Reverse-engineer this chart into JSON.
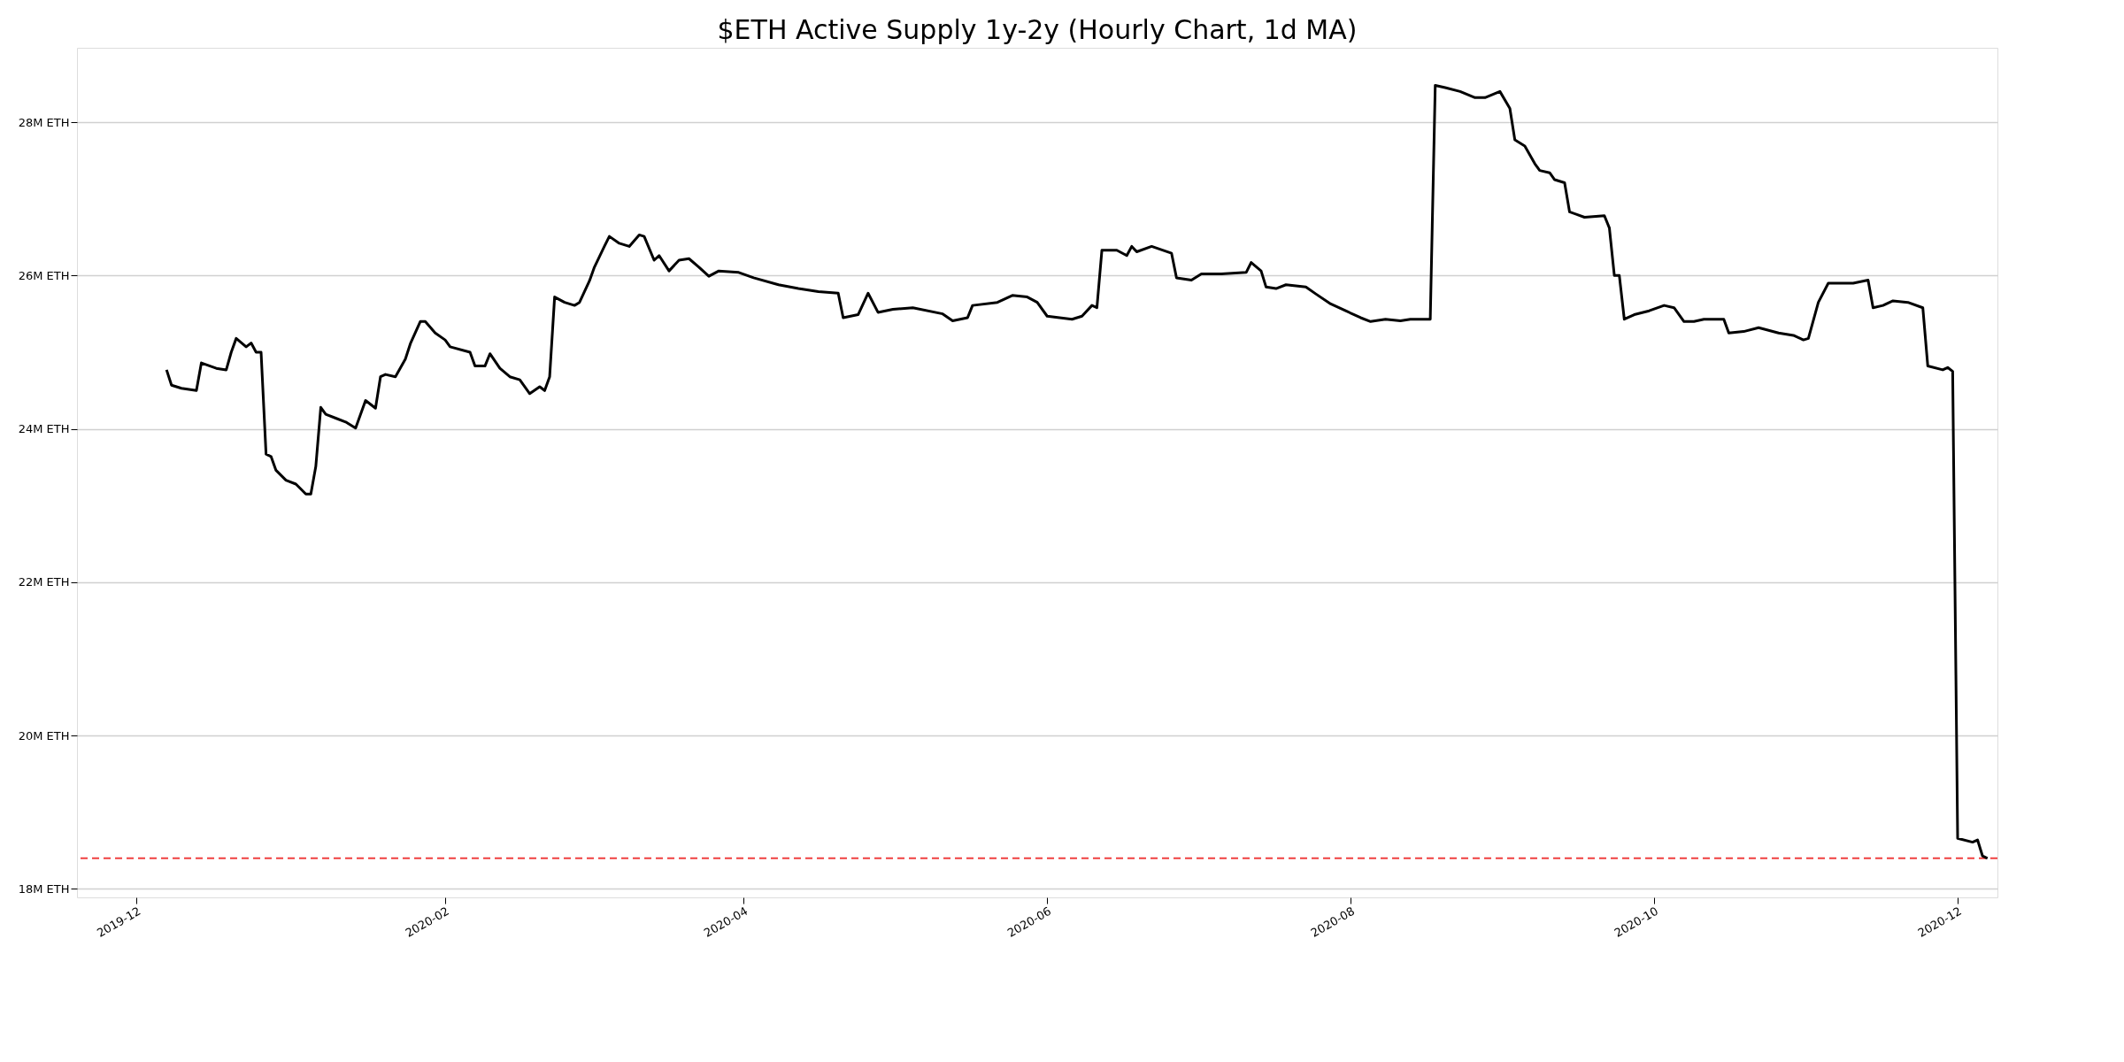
{
  "chart_data": {
    "type": "line",
    "title": "$ETH Active Supply 1y-2y (Hourly Chart, 1d MA)",
    "x": [
      "2019-12-07",
      "2019-12-08",
      "2019-12-10",
      "2019-12-13",
      "2019-12-14",
      "2019-12-17",
      "2019-12-19",
      "2019-12-20",
      "2019-12-21",
      "2019-12-23",
      "2019-12-24",
      "2019-12-25",
      "2019-12-26",
      "2019-12-27",
      "2019-12-28",
      "2019-12-29",
      "2019-12-31",
      "2020-01-02",
      "2020-01-04",
      "2020-01-05",
      "2020-01-06",
      "2020-01-07",
      "2020-01-08",
      "2020-01-10",
      "2020-01-12",
      "2020-01-14",
      "2020-01-16",
      "2020-01-18",
      "2020-01-19",
      "2020-01-20",
      "2020-01-22",
      "2020-01-24",
      "2020-01-25",
      "2020-01-27",
      "2020-01-28",
      "2020-01-30",
      "2020-02-01",
      "2020-02-02",
      "2020-02-06",
      "2020-02-07",
      "2020-02-09",
      "2020-02-10",
      "2020-02-12",
      "2020-02-14",
      "2020-02-16",
      "2020-02-18",
      "2020-02-20",
      "2020-02-21",
      "2020-02-22",
      "2020-02-23",
      "2020-02-25",
      "2020-02-27",
      "2020-02-28",
      "2020-03-01",
      "2020-03-02",
      "2020-03-04",
      "2020-03-05",
      "2020-03-07",
      "2020-03-09",
      "2020-03-11",
      "2020-03-12",
      "2020-03-14",
      "2020-03-15",
      "2020-03-17",
      "2020-03-19",
      "2020-03-21",
      "2020-03-23",
      "2020-03-25",
      "2020-03-27",
      "2020-03-31",
      "2020-04-03",
      "2020-04-08",
      "2020-04-12",
      "2020-04-16",
      "2020-04-20",
      "2020-04-21",
      "2020-04-24",
      "2020-04-26",
      "2020-04-28",
      "2020-05-01",
      "2020-05-05",
      "2020-05-11",
      "2020-05-13",
      "2020-05-16",
      "2020-05-17",
      "2020-05-22",
      "2020-05-25",
      "2020-05-28",
      "2020-05-30",
      "2020-06-01",
      "2020-06-06",
      "2020-06-08",
      "2020-06-10",
      "2020-06-11",
      "2020-06-12",
      "2020-06-15",
      "2020-06-17",
      "2020-06-18",
      "2020-06-19",
      "2020-06-22",
      "2020-06-26",
      "2020-06-27",
      "2020-06-30",
      "2020-07-02",
      "2020-07-06",
      "2020-07-11",
      "2020-07-12",
      "2020-07-14",
      "2020-07-15",
      "2020-07-17",
      "2020-07-19",
      "2020-07-23",
      "2020-07-25",
      "2020-07-28",
      "2020-07-31",
      "2020-08-03",
      "2020-08-05",
      "2020-08-08",
      "2020-08-11",
      "2020-08-13",
      "2020-08-16",
      "2020-08-17",
      "2020-08-18",
      "2020-08-20",
      "2020-08-23",
      "2020-08-26",
      "2020-08-28",
      "2020-08-31",
      "2020-09-02",
      "2020-09-03",
      "2020-09-05",
      "2020-09-07",
      "2020-09-08",
      "2020-09-10",
      "2020-09-11",
      "2020-09-13",
      "2020-09-14",
      "2020-09-17",
      "2020-09-21",
      "2020-09-22",
      "2020-09-23",
      "2020-09-24",
      "2020-09-25",
      "2020-09-27",
      "2020-09-30",
      "2020-10-03",
      "2020-10-05",
      "2020-10-07",
      "2020-10-09",
      "2020-10-11",
      "2020-10-15",
      "2020-10-16",
      "2020-10-19",
      "2020-10-22",
      "2020-10-26",
      "2020-10-29",
      "2020-10-31",
      "2020-11-01",
      "2020-11-03",
      "2020-11-05",
      "2020-11-10",
      "2020-11-13",
      "2020-11-14",
      "2020-11-16",
      "2020-11-18",
      "2020-11-21",
      "2020-11-24",
      "2020-11-25",
      "2020-11-28",
      "2020-11-29",
      "2020-11-30",
      "2020-12-01",
      "2020-12-04",
      "2020-12-05",
      "2020-12-06",
      "2020-12-07"
    ],
    "series": [
      {
        "color": "#000000",
        "values": [
          24.77,
          24.57,
          24.53,
          24.5,
          24.86,
          24.79,
          24.77,
          25.0,
          25.18,
          25.07,
          25.12,
          25.0,
          25.0,
          23.67,
          23.64,
          23.46,
          23.33,
          23.28,
          23.15,
          23.15,
          23.51,
          24.28,
          24.19,
          24.14,
          24.09,
          24.01,
          24.37,
          24.27,
          24.68,
          24.71,
          24.68,
          24.91,
          25.11,
          25.4,
          25.4,
          25.25,
          25.16,
          25.07,
          25.0,
          24.82,
          24.82,
          24.98,
          24.79,
          24.68,
          24.64,
          24.46,
          24.55,
          24.5,
          24.68,
          25.72,
          25.65,
          25.61,
          25.65,
          25.93,
          26.11,
          26.38,
          26.51,
          26.42,
          26.38,
          26.53,
          26.51,
          26.2,
          26.26,
          26.06,
          26.2,
          26.22,
          26.11,
          25.99,
          26.06,
          26.04,
          25.97,
          25.88,
          25.83,
          25.79,
          25.77,
          25.45,
          25.49,
          25.77,
          25.52,
          25.56,
          25.58,
          25.5,
          25.41,
          25.45,
          25.61,
          25.65,
          25.74,
          25.72,
          25.65,
          25.47,
          25.43,
          25.47,
          25.61,
          25.58,
          26.33,
          26.33,
          26.26,
          26.38,
          26.31,
          26.38,
          26.29,
          25.97,
          25.94,
          26.02,
          26.02,
          26.04,
          26.17,
          26.06,
          25.85,
          25.83,
          25.88,
          25.85,
          25.76,
          25.63,
          25.54,
          25.45,
          25.4,
          25.43,
          25.41,
          25.43,
          25.43,
          25.43,
          28.48,
          28.45,
          28.4,
          28.32,
          28.32,
          28.4,
          28.18,
          27.77,
          27.69,
          27.46,
          27.37,
          27.34,
          27.25,
          27.21,
          26.83,
          26.76,
          26.78,
          26.62,
          26.0,
          26.0,
          25.43,
          25.49,
          25.54,
          25.61,
          25.58,
          25.4,
          25.4,
          25.43,
          25.43,
          25.25,
          25.27,
          25.32,
          25.25,
          25.22,
          25.16,
          25.18,
          25.65,
          25.9,
          25.9,
          25.94,
          25.58,
          25.61,
          25.67,
          25.65,
          25.58,
          24.82,
          24.77,
          24.8,
          24.75,
          18.66,
          18.61,
          18.64,
          18.43,
          18.4
        ]
      }
    ],
    "xlim": [
      "2019-11-19",
      "2020-12-09"
    ],
    "xticks": [
      "2019-12",
      "2020-02",
      "2020-04",
      "2020-06",
      "2020-08",
      "2020-10",
      "2020-12"
    ],
    "ylim": [
      17.89,
      28.97
    ],
    "yticks": [
      {
        "value": 18,
        "label": "18M ETH"
      },
      {
        "value": 20,
        "label": "20M ETH"
      },
      {
        "value": 22,
        "label": "22M ETH"
      },
      {
        "value": 24,
        "label": "24M ETH"
      },
      {
        "value": 26,
        "label": "26M ETH"
      },
      {
        "value": 28,
        "label": "28M ETH"
      }
    ],
    "ref_lines": [
      {
        "axis": "y",
        "value": 18.4,
        "color": "#f04040",
        "line_style": "dashed"
      }
    ],
    "grid": "y",
    "marker": "none",
    "line_style": "solid"
  }
}
